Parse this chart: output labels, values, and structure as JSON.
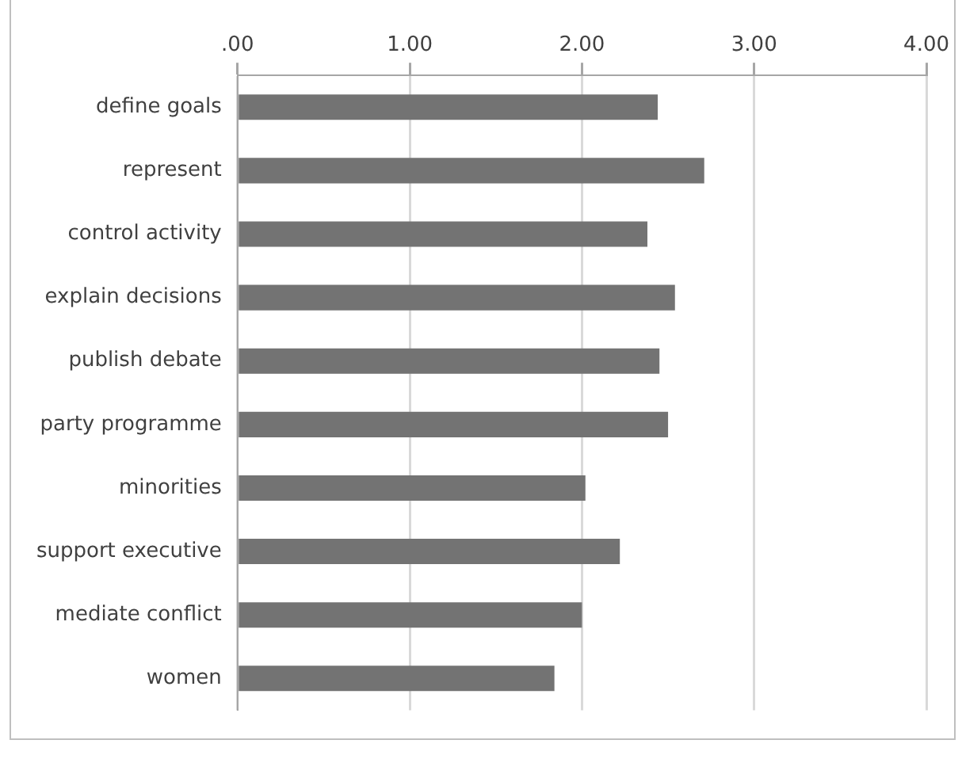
{
  "chart_data": {
    "type": "bar",
    "orientation": "horizontal",
    "categories": [
      "define goals",
      "represent",
      "control activity",
      "explain decisions",
      "publish debate",
      "party programme",
      "minorities",
      "support executive",
      "mediate conflict",
      "women"
    ],
    "values": [
      2.44,
      2.71,
      2.38,
      2.54,
      2.45,
      2.5,
      2.02,
      2.22,
      2.0,
      1.84
    ],
    "color": "#737373",
    "xlim": [
      0,
      4
    ],
    "xticks": [
      {
        "value": 0,
        "label": ".00"
      },
      {
        "value": 1,
        "label": "1.00"
      },
      {
        "value": 2,
        "label": "2.00"
      },
      {
        "value": 3,
        "label": "3.00"
      },
      {
        "value": 4,
        "label": "4.00"
      }
    ],
    "grid": "x",
    "legend": false
  }
}
